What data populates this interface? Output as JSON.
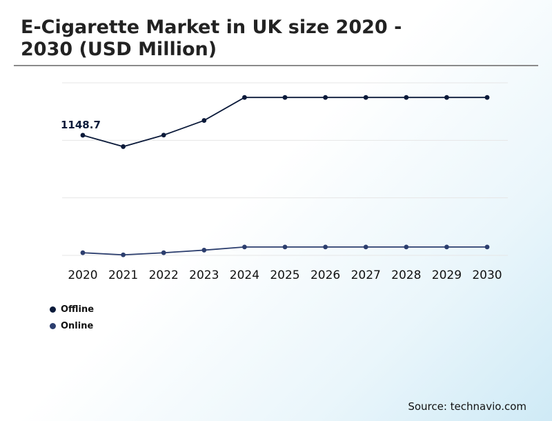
{
  "title": "E-Cigarette Market in UK size 2020 - 2030 (USD Million)",
  "source": "Source: technavio.com",
  "colors": {
    "offline": "#0b1a3a",
    "online": "#2c3e6e",
    "grid": "#e6e6e6"
  },
  "chart_data": {
    "type": "line",
    "x": [
      "2020",
      "2021",
      "2022",
      "2023",
      "2024",
      "2025",
      "2026",
      "2027",
      "2028",
      "2029",
      "2030"
    ],
    "ylim": [
      0,
      1650
    ],
    "grid": true,
    "legend_position": "bottom-left",
    "annotations": [
      {
        "series": "Offline",
        "x": "2020",
        "text": "1148.7"
      }
    ],
    "series": [
      {
        "name": "Offline",
        "values": [
          1148.7,
          1040,
          1150,
          1290,
          1510,
          1510,
          1510,
          1510,
          1510,
          1510,
          1510
        ]
      },
      {
        "name": "Online",
        "values": [
          25,
          5,
          25,
          50,
          80,
          80,
          80,
          80,
          80,
          80,
          80
        ]
      }
    ]
  }
}
